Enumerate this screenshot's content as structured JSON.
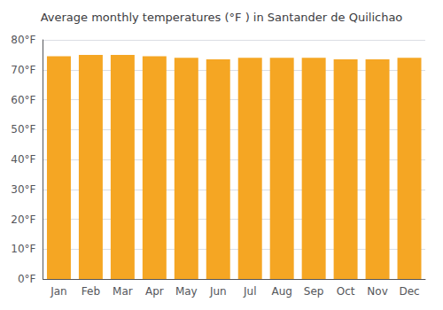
{
  "chart_data": {
    "type": "bar",
    "title": "Average monthly temperatures (°F ) in Santander de Quilichao",
    "categories": [
      "Jan",
      "Feb",
      "Mar",
      "Apr",
      "May",
      "Jun",
      "Jul",
      "Aug",
      "Sep",
      "Oct",
      "Nov",
      "Dec"
    ],
    "values": [
      74.5,
      75.0,
      75.0,
      74.5,
      74.0,
      73.5,
      74.0,
      74.0,
      74.0,
      73.5,
      73.5,
      74.0
    ],
    "color": "#F5A623",
    "ylim": [
      0,
      80
    ],
    "yticks": [
      {
        "value": 0,
        "label": "0°F"
      },
      {
        "value": 10,
        "label": "10°F"
      },
      {
        "value": 20,
        "label": "20°F"
      },
      {
        "value": 30,
        "label": "30°F"
      },
      {
        "value": 40,
        "label": "40°F"
      },
      {
        "value": 50,
        "label": "50°F"
      },
      {
        "value": 60,
        "label": "60°F"
      },
      {
        "value": 70,
        "label": "70°F"
      },
      {
        "value": 80,
        "label": "80°F"
      }
    ],
    "grid": true
  }
}
